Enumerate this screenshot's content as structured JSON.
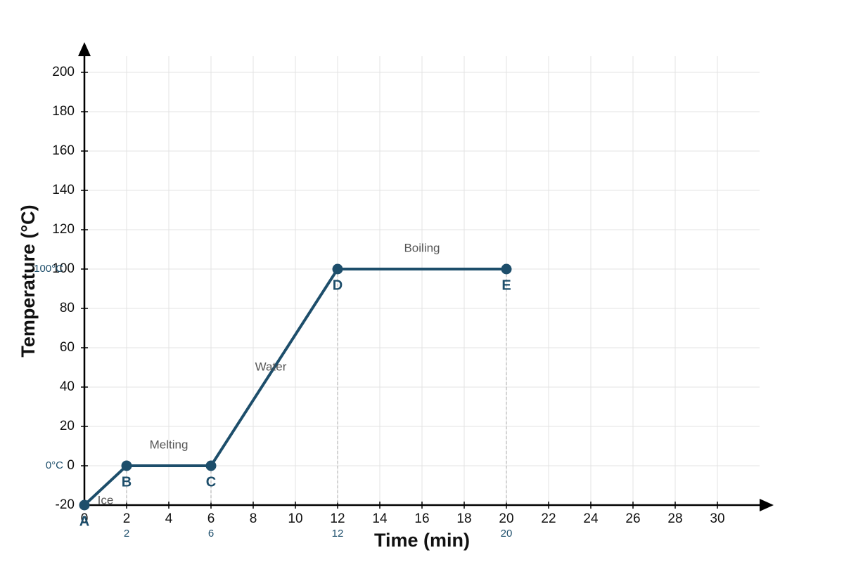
{
  "chart_data": {
    "type": "line",
    "x_label": "Time (min)",
    "y_label": "Temperature (°C)",
    "x": [
      0,
      2,
      6,
      12,
      20
    ],
    "series": [
      {
        "color": "#1d4e6b",
        "values": [
          -20,
          0,
          0,
          100,
          100
        ]
      }
    ],
    "point_labels": [
      "A",
      "B",
      "C",
      "D",
      "E"
    ],
    "segment_labels": [
      "Ice",
      "Melting",
      "Water",
      "Boiling"
    ],
    "reference_labels": [
      {
        "value": 0,
        "label": "0°C"
      },
      {
        "value": 100,
        "label": "100°C"
      }
    ],
    "x_markers": [
      2,
      6,
      12,
      20
    ],
    "xlim": [
      0,
      32
    ],
    "ylim": [
      -20,
      210
    ],
    "xticks": [
      0,
      2,
      4,
      6,
      8,
      10,
      12,
      14,
      16,
      18,
      20,
      22,
      24,
      26,
      28,
      30
    ],
    "yticks": [
      -20,
      0,
      20,
      40,
      60,
      80,
      100,
      120,
      140,
      160,
      180,
      200
    ],
    "grid": true
  }
}
